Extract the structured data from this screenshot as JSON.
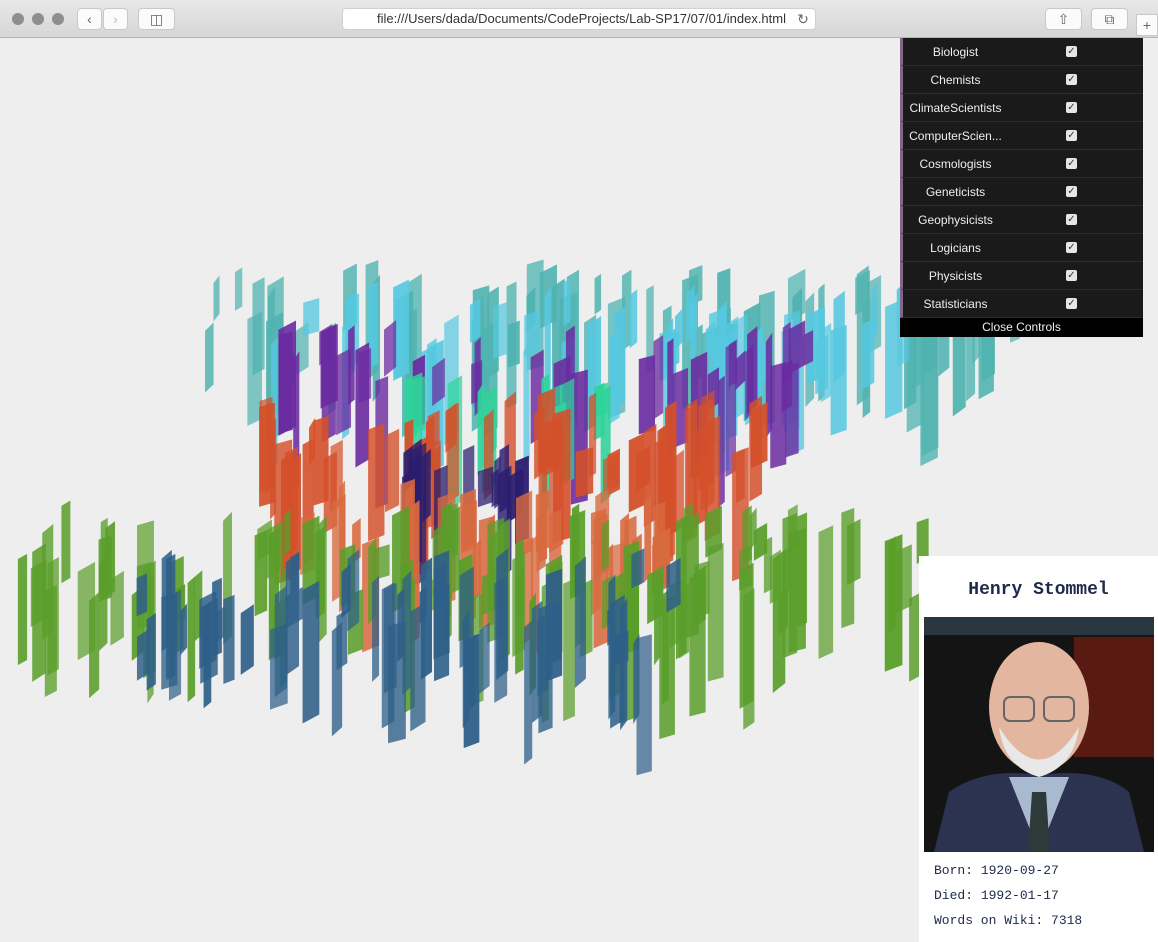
{
  "browser": {
    "url": "file:///Users/dada/Documents/CodeProjects/Lab-SP17/07/01/index.html"
  },
  "controls": {
    "items": [
      {
        "label": "Biologist",
        "checked": true
      },
      {
        "label": "Chemists",
        "checked": true
      },
      {
        "label": "ClimateScientists",
        "checked": true
      },
      {
        "label": "ComputerScien...",
        "checked": true
      },
      {
        "label": "Cosmologists",
        "checked": true
      },
      {
        "label": "Geneticists",
        "checked": true
      },
      {
        "label": "Geophysicists",
        "checked": true
      },
      {
        "label": "Logicians",
        "checked": true
      },
      {
        "label": "Physicists",
        "checked": true
      },
      {
        "label": "Statisticians",
        "checked": true
      }
    ],
    "close": "Close Controls"
  },
  "card": {
    "name": "Henry Stommel",
    "born": {
      "label": "Born:",
      "value": "1920-09-27"
    },
    "died": {
      "label": "Died:",
      "value": "1992-01-17"
    },
    "words": {
      "label": "Words on Wiki:",
      "value": 7318
    }
  }
}
